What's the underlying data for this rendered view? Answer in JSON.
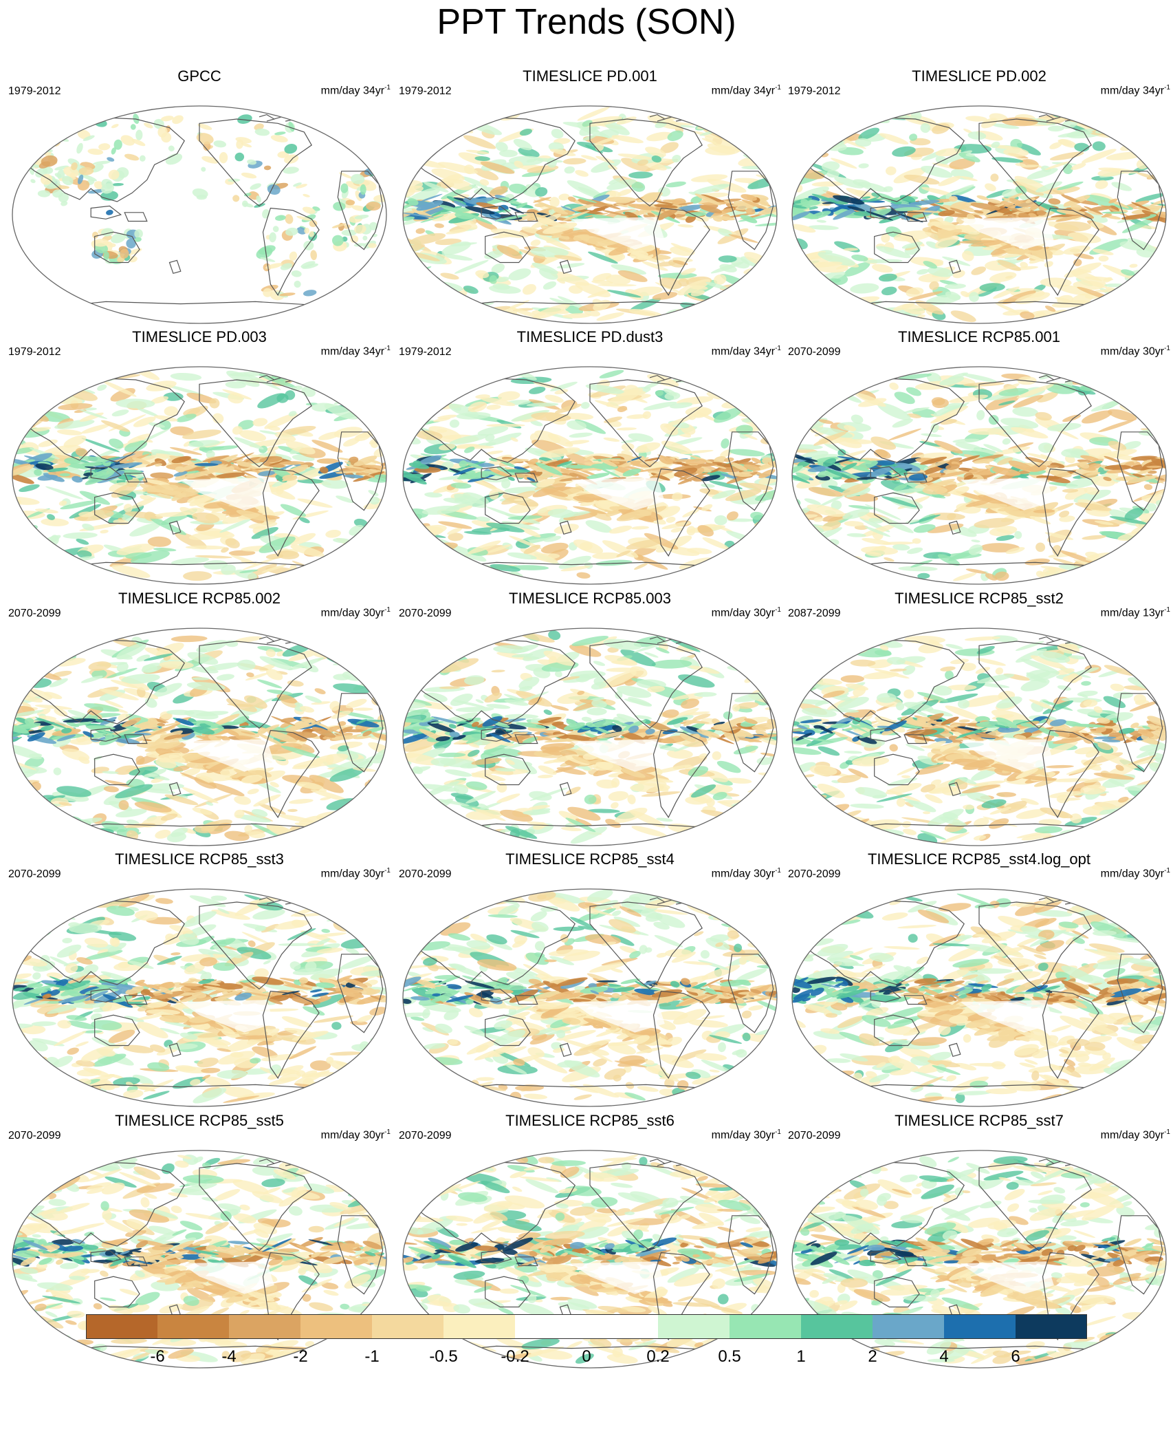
{
  "figure": {
    "title": "PPT Trends (SON)"
  },
  "panels": [
    {
      "title": "GPCC",
      "period": "1979-2012",
      "unit_prefix": "mm/day 34yr",
      "unit_sup": "-1",
      "pattern": "obs"
    },
    {
      "title": "TIMESLICE PD.001",
      "period": "1979-2012",
      "unit_prefix": "mm/day 34yr",
      "unit_sup": "-1",
      "pattern": "pd1"
    },
    {
      "title": "TIMESLICE PD.002",
      "period": "1979-2012",
      "unit_prefix": "mm/day 34yr",
      "unit_sup": "-1",
      "pattern": "pd2"
    },
    {
      "title": "TIMESLICE PD.003",
      "period": "1979-2012",
      "unit_prefix": "mm/day 34yr",
      "unit_sup": "-1",
      "pattern": "pd3"
    },
    {
      "title": "TIMESLICE PD.dust3",
      "period": "1979-2012",
      "unit_prefix": "mm/day 34yr",
      "unit_sup": "-1",
      "pattern": "pdd"
    },
    {
      "title": "TIMESLICE RCP85.001",
      "period": "2070-2099",
      "unit_prefix": "mm/day 30yr",
      "unit_sup": "-1",
      "pattern": "r1"
    },
    {
      "title": "TIMESLICE RCP85.002",
      "period": "2070-2099",
      "unit_prefix": "mm/day 30yr",
      "unit_sup": "-1",
      "pattern": "r2"
    },
    {
      "title": "TIMESLICE RCP85.003",
      "period": "2070-2099",
      "unit_prefix": "mm/day 30yr",
      "unit_sup": "-1",
      "pattern": "r3"
    },
    {
      "title": "TIMESLICE RCP85_sst2",
      "period": "2087-2099",
      "unit_prefix": "mm/day 13yr",
      "unit_sup": "-1",
      "pattern": "s2"
    },
    {
      "title": "TIMESLICE RCP85_sst3",
      "period": "2070-2099",
      "unit_prefix": "mm/day 30yr",
      "unit_sup": "-1",
      "pattern": "s3"
    },
    {
      "title": "TIMESLICE RCP85_sst4",
      "period": "2070-2099",
      "unit_prefix": "mm/day 30yr",
      "unit_sup": "-1",
      "pattern": "s4"
    },
    {
      "title": "TIMESLICE RCP85_sst4.log_opt",
      "period": "2070-2099",
      "unit_prefix": "mm/day 30yr",
      "unit_sup": "-1",
      "pattern": "s4l"
    },
    {
      "title": "TIMESLICE RCP85_sst5",
      "period": "2070-2099",
      "unit_prefix": "mm/day 30yr",
      "unit_sup": "-1",
      "pattern": "s5"
    },
    {
      "title": "TIMESLICE RCP85_sst6",
      "period": "2070-2099",
      "unit_prefix": "mm/day 30yr",
      "unit_sup": "-1",
      "pattern": "s6"
    },
    {
      "title": "TIMESLICE RCP85_sst7",
      "period": "2070-2099",
      "unit_prefix": "mm/day 30yr",
      "unit_sup": "-1",
      "pattern": "s7"
    }
  ],
  "colorbar": {
    "labels": [
      "-6",
      "-4",
      "-2",
      "-1",
      "-0.5",
      "-0.2",
      "0",
      "0.2",
      "0.5",
      "1",
      "2",
      "4",
      "6"
    ],
    "colors": [
      "#b5672a",
      "#c98540",
      "#dba462",
      "#edc07e",
      "#f4d99e",
      "#fbefbe",
      "#ffffff",
      "#ffffff",
      "#cff5d2",
      "#97e6b3",
      "#57c59d",
      "#6aa7c9",
      "#1d6fae",
      "#0d3a5e"
    ]
  },
  "map_style": {
    "dry_colors": [
      "#fbefbe",
      "#f4d99e",
      "#edc07e",
      "#dba462",
      "#c98540"
    ],
    "wet_colors": [
      "#cff5d2",
      "#97e6b3",
      "#57c59d",
      "#6aa7c9",
      "#1d6fae",
      "#0d3a5e"
    ],
    "coast_color": "#555555"
  }
}
